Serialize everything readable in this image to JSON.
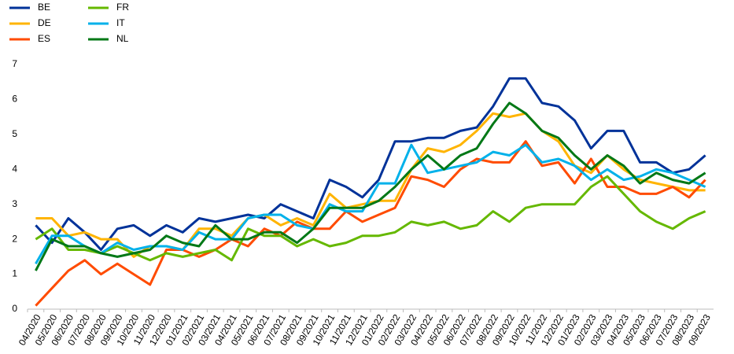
{
  "chart_data": {
    "type": "line",
    "categories": [
      "04/2020",
      "05/2020",
      "06/2020",
      "07/2020",
      "08/2020",
      "09/2020",
      "10/2020",
      "11/2020",
      "12/2020",
      "01/2021",
      "02/2021",
      "03/2021",
      "04/2021",
      "05/2021",
      "06/2021",
      "07/2021",
      "08/2021",
      "09/2021",
      "10/2021",
      "11/2021",
      "12/2021",
      "01/2022",
      "02/2022",
      "03/2022",
      "04/2022",
      "05/2022",
      "06/2022",
      "07/2022",
      "08/2022",
      "09/2022",
      "10/2022",
      "11/2022",
      "12/2022",
      "01/2023",
      "02/2023",
      "03/2023",
      "04/2023",
      "05/2023",
      "06/2023",
      "07/2023",
      "08/2023",
      "09/2023"
    ],
    "series": [
      {
        "name": "BE",
        "color": "#003299",
        "values": [
          2.4,
          1.9,
          2.6,
          2.2,
          1.7,
          2.3,
          2.4,
          2.1,
          2.4,
          2.2,
          2.6,
          2.5,
          2.6,
          2.7,
          2.6,
          3.0,
          2.8,
          2.6,
          3.7,
          3.5,
          3.2,
          3.7,
          4.8,
          4.8,
          4.9,
          4.9,
          5.1,
          5.2,
          5.8,
          6.6,
          6.6,
          5.9,
          5.8,
          5.4,
          4.6,
          5.1,
          5.1,
          4.2,
          4.2,
          3.9,
          4.0,
          4.4
        ]
      },
      {
        "name": "DE",
        "color": "#ffb400",
        "values": [
          2.6,
          2.6,
          2.1,
          2.2,
          2.0,
          2.0,
          1.5,
          1.8,
          1.8,
          1.7,
          2.3,
          2.3,
          2.1,
          2.6,
          2.7,
          2.4,
          2.6,
          2.4,
          3.3,
          2.9,
          3.0,
          3.1,
          3.1,
          4.0,
          4.6,
          4.5,
          4.7,
          5.1,
          5.6,
          5.5,
          5.6,
          5.1,
          4.8,
          4.1,
          3.9,
          4.4,
          4.0,
          3.7,
          3.6,
          3.5,
          3.4,
          3.4
        ]
      },
      {
        "name": "ES",
        "color": "#ff4b00",
        "values": [
          0.1,
          0.6,
          1.1,
          1.4,
          1.0,
          1.3,
          1.0,
          0.7,
          1.7,
          1.7,
          1.5,
          1.7,
          2.0,
          1.8,
          2.3,
          2.1,
          2.5,
          2.3,
          2.3,
          2.8,
          2.5,
          2.7,
          2.9,
          3.8,
          3.7,
          3.5,
          4.0,
          4.3,
          4.2,
          4.2,
          4.8,
          4.1,
          4.2,
          3.6,
          4.3,
          3.5,
          3.5,
          3.3,
          3.3,
          3.5,
          3.2,
          3.7
        ]
      },
      {
        "name": "FR",
        "color": "#65b800",
        "values": [
          2.0,
          2.3,
          1.7,
          1.7,
          1.6,
          1.8,
          1.6,
          1.4,
          1.6,
          1.5,
          1.6,
          1.7,
          1.4,
          2.3,
          2.1,
          2.1,
          1.8,
          2.0,
          1.8,
          1.9,
          2.1,
          2.1,
          2.2,
          2.5,
          2.4,
          2.5,
          2.3,
          2.4,
          2.8,
          2.5,
          2.9,
          3.0,
          3.0,
          3.0,
          3.5,
          3.8,
          3.3,
          2.8,
          2.5,
          2.3,
          2.6,
          2.8
        ]
      },
      {
        "name": "IT",
        "color": "#00b1ea",
        "values": [
          1.3,
          2.1,
          2.1,
          1.8,
          1.6,
          1.9,
          1.7,
          1.8,
          1.8,
          1.7,
          2.2,
          2.0,
          2.0,
          2.6,
          2.7,
          2.7,
          2.4,
          2.3,
          3.0,
          2.8,
          2.8,
          3.6,
          3.6,
          4.7,
          3.9,
          4.0,
          4.1,
          4.2,
          4.5,
          4.4,
          4.7,
          4.2,
          4.3,
          4.1,
          3.7,
          4.0,
          3.7,
          3.8,
          4.0,
          3.9,
          3.7,
          3.5
        ]
      },
      {
        "name": "NL",
        "color": "#007816",
        "values": [
          1.1,
          2.0,
          1.8,
          1.8,
          1.6,
          1.5,
          1.6,
          1.7,
          2.1,
          1.9,
          1.8,
          2.4,
          2.0,
          2.0,
          2.2,
          2.2,
          1.9,
          2.3,
          2.9,
          2.9,
          2.9,
          3.1,
          3.5,
          4.0,
          4.4,
          4.0,
          4.4,
          4.6,
          5.3,
          5.9,
          5.6,
          5.1,
          4.9,
          4.4,
          4.0,
          4.4,
          4.1,
          3.6,
          3.9,
          3.7,
          3.6,
          3.9
        ]
      }
    ],
    "ylim": [
      0,
      7
    ],
    "yticks": [
      0,
      1,
      2,
      3,
      4,
      5,
      6,
      7
    ],
    "grid": false,
    "legend": "top-left"
  }
}
